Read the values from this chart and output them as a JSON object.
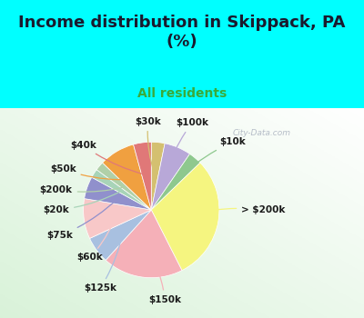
{
  "title": "Income distribution in Skippack, PA\n(%)",
  "subtitle": "All residents",
  "title_color": "#1a1a2e",
  "subtitle_color": "#3aaa3a",
  "background_top": "#00ffff",
  "labels_ordered": [
    "> $200k",
    "$10k",
    "$100k",
    "$30k",
    "$40k",
    "$50k",
    "$200k",
    "$20k",
    "$75k",
    "$60k",
    "$125k",
    "$150k"
  ],
  "values_ordered": [
    28,
    3,
    6,
    3,
    4,
    8,
    2,
    2,
    5,
    9,
    6,
    18
  ],
  "wedge_colors": [
    "#f5f580",
    "#8ec88e",
    "#b8a8d8",
    "#d4c070",
    "#e07878",
    "#f0a040",
    "#b0d0a8",
    "#a8d4b8",
    "#9090cc",
    "#f8c8c8",
    "#a8c0e0",
    "#f5b0b8"
  ],
  "watermark": "City-Data.com"
}
